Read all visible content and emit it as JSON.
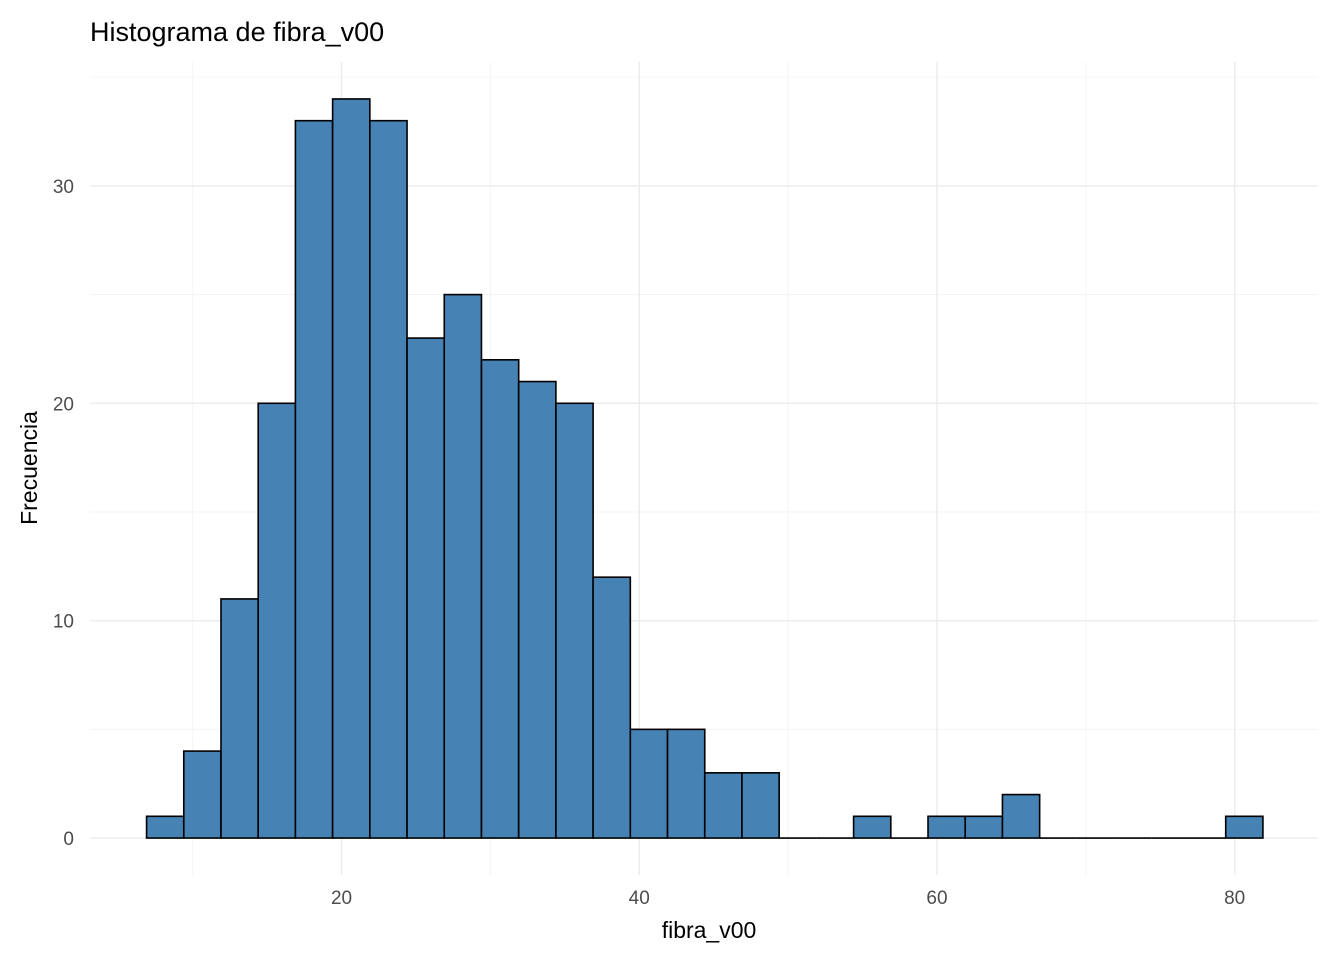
{
  "chart_data": {
    "type": "bar",
    "title": "Histograma de fibra_v00",
    "xlabel": "fibra_v00",
    "ylabel": "Frecuencia",
    "bin_width": 2.5,
    "bins": [
      {
        "x0": 6.9,
        "x1": 9.4,
        "count": 1
      },
      {
        "x0": 9.4,
        "x1": 11.9,
        "count": 4
      },
      {
        "x0": 11.9,
        "x1": 14.4,
        "count": 11
      },
      {
        "x0": 14.4,
        "x1": 16.9,
        "count": 20
      },
      {
        "x0": 16.9,
        "x1": 19.4,
        "count": 33
      },
      {
        "x0": 19.4,
        "x1": 21.9,
        "count": 34
      },
      {
        "x0": 21.9,
        "x1": 24.4,
        "count": 33
      },
      {
        "x0": 24.4,
        "x1": 26.9,
        "count": 23
      },
      {
        "x0": 26.9,
        "x1": 29.4,
        "count": 25
      },
      {
        "x0": 29.4,
        "x1": 31.9,
        "count": 22
      },
      {
        "x0": 31.9,
        "x1": 34.4,
        "count": 21
      },
      {
        "x0": 34.4,
        "x1": 36.9,
        "count": 20
      },
      {
        "x0": 36.9,
        "x1": 39.4,
        "count": 12
      },
      {
        "x0": 39.4,
        "x1": 41.9,
        "count": 5
      },
      {
        "x0": 41.9,
        "x1": 44.4,
        "count": 5
      },
      {
        "x0": 44.4,
        "x1": 46.9,
        "count": 3
      },
      {
        "x0": 46.9,
        "x1": 49.4,
        "count": 3
      },
      {
        "x0": 49.4,
        "x1": 51.9,
        "count": 0
      },
      {
        "x0": 51.9,
        "x1": 54.4,
        "count": 0
      },
      {
        "x0": 54.4,
        "x1": 56.9,
        "count": 1
      },
      {
        "x0": 56.9,
        "x1": 59.4,
        "count": 0
      },
      {
        "x0": 59.4,
        "x1": 61.9,
        "count": 1
      },
      {
        "x0": 61.9,
        "x1": 64.4,
        "count": 1
      },
      {
        "x0": 64.4,
        "x1": 66.9,
        "count": 2
      },
      {
        "x0": 66.9,
        "x1": 69.4,
        "count": 0
      },
      {
        "x0": 69.4,
        "x1": 71.9,
        "count": 0
      },
      {
        "x0": 71.9,
        "x1": 74.4,
        "count": 0
      },
      {
        "x0": 74.4,
        "x1": 76.9,
        "count": 0
      },
      {
        "x0": 76.9,
        "x1": 79.4,
        "count": 0
      },
      {
        "x0": 79.4,
        "x1": 81.9,
        "count": 1
      }
    ],
    "xlim": [
      3.1,
      85.6
    ],
    "ylim": [
      -1.7,
      35.7
    ],
    "x_ticks": [
      20,
      40,
      60,
      80
    ],
    "x_tick_labels": [
      "20",
      "40",
      "60",
      "80"
    ],
    "y_ticks": [
      0,
      10,
      20,
      30
    ],
    "y_tick_labels": [
      "0",
      "10",
      "20",
      "30"
    ],
    "grid": true,
    "bar_fill": "#4682b4",
    "bar_outline": "#000000"
  }
}
